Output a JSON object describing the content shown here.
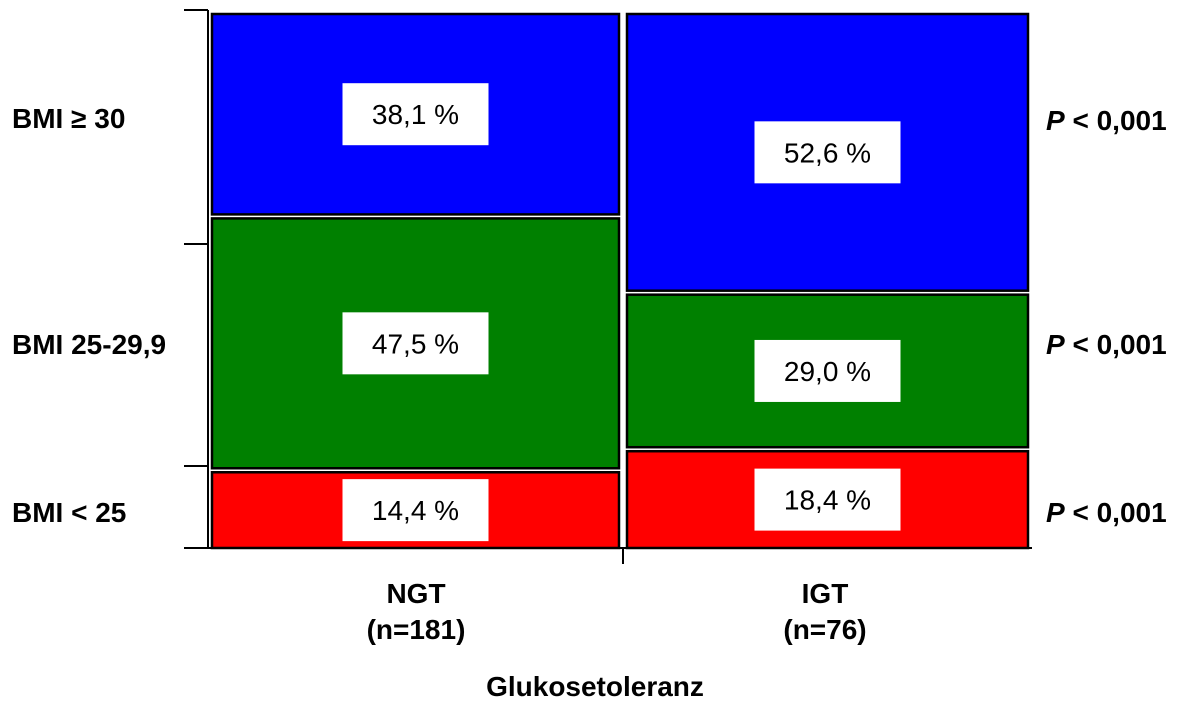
{
  "chart_data": {
    "type": "mosaic",
    "xlabel": "Glukosetoleranz",
    "columns": [
      {
        "label": "NGT",
        "n_label": "(n=181)",
        "n": 181
      },
      {
        "label": "IGT",
        "n_label": "(n=76)",
        "n": 76
      }
    ],
    "rows": [
      {
        "label": "BMI ≥ 30",
        "p_prefix": "P",
        "p_value": "< 0,001",
        "color": "#0000ff"
      },
      {
        "label": "BMI 25-29,9",
        "p_prefix": "P",
        "p_value": "< 0,001",
        "color": "#008000"
      },
      {
        "label": "BMI < 25",
        "p_prefix": "P",
        "p_value": "< 0,001",
        "color": "#ff0000"
      }
    ],
    "values": [
      [
        38.1,
        52.6
      ],
      [
        47.5,
        29.0
      ],
      [
        14.4,
        18.4
      ]
    ],
    "value_labels": [
      [
        "38,1 %",
        "52,6 %"
      ],
      [
        "47,5 %",
        "29,0 %"
      ],
      [
        "14,4 %",
        "18,4 %"
      ]
    ]
  }
}
